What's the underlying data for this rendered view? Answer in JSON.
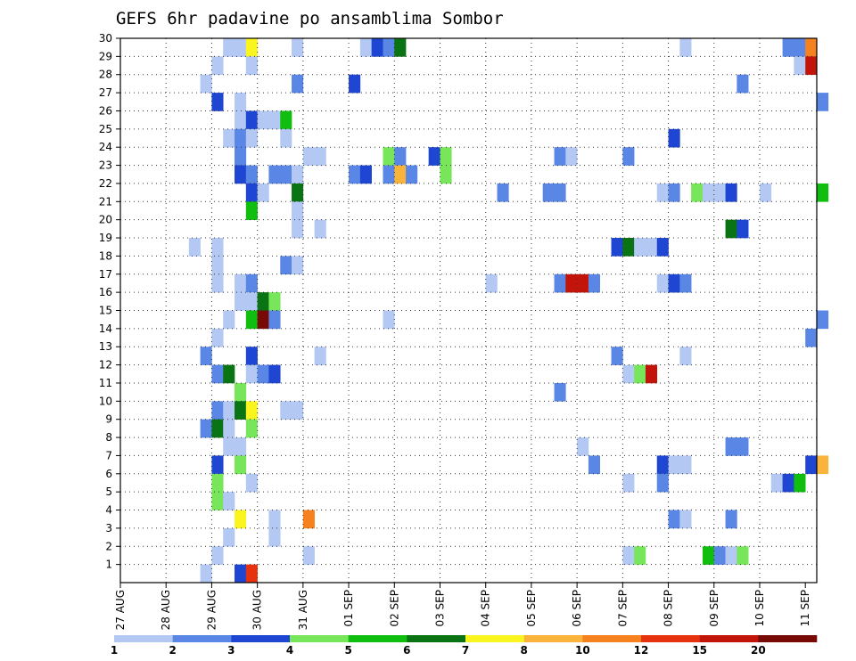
{
  "chart_data": {
    "type": "heatmap",
    "title": "GEFS 6hr padavine po ansamblima Sombor",
    "xlabel": "",
    "ylabel": "",
    "x_tick_labels": [
      "27 AUG",
      "28 AUG",
      "29 AUG",
      "30 AUG",
      "31 AUG",
      "01 SEP",
      "02 SEP",
      "03 SEP",
      "04 SEP",
      "05 SEP",
      "06 SEP",
      "07 SEP",
      "08 SEP",
      "09 SEP",
      "10 SEP",
      "11 SEP"
    ],
    "x_unit": "6-hour step (4 per day)",
    "xlim_steps": [
      0,
      61
    ],
    "y_tick_labels": [
      "1",
      "2",
      "3",
      "4",
      "5",
      "6",
      "7",
      "8",
      "9",
      "10",
      "11",
      "12",
      "13",
      "14",
      "15",
      "16",
      "17",
      "18",
      "19",
      "20",
      "21",
      "22",
      "23",
      "24",
      "25",
      "26",
      "27",
      "28",
      "29",
      "30"
    ],
    "ylim": [
      0,
      30
    ],
    "grid": true,
    "legend_position": "bottom",
    "levels": [
      "1",
      "2",
      "3",
      "4",
      "5",
      "6",
      "7",
      "8",
      "10",
      "12",
      "15",
      "20"
    ],
    "level_colors": [
      "#b4c8f4",
      "#5a87e6",
      "#1e46d2",
      "#78e65a",
      "#10be10",
      "#0a7314",
      "#faf51e",
      "#fab43c",
      "#f5821e",
      "#e6320f",
      "#c3140a",
      "#780a05"
    ],
    "cells": [
      [
        30,
        10,
        2
      ],
      [
        30,
        15,
        1
      ],
      [
        30,
        21,
        1
      ],
      [
        30,
        22,
        3
      ],
      [
        30,
        23,
        2
      ],
      [
        30,
        24,
        6
      ],
      [
        30,
        58,
        2
      ],
      [
        30,
        59,
        2
      ],
      [
        30,
        60,
        9
      ],
      [
        29,
        9,
        1
      ],
      [
        29,
        10,
        1
      ],
      [
        29,
        11,
        7
      ],
      [
        29,
        49,
        1
      ],
      [
        28,
        8,
        1
      ],
      [
        28,
        11,
        1
      ],
      [
        28,
        59,
        1
      ],
      [
        28,
        60,
        11
      ],
      [
        27,
        7,
        1
      ],
      [
        27,
        15,
        2
      ],
      [
        27,
        20,
        3
      ],
      [
        27,
        54,
        2
      ],
      [
        26,
        8,
        3
      ],
      [
        26,
        10,
        1
      ],
      [
        26,
        61,
        2
      ],
      [
        25,
        10,
        1
      ],
      [
        25,
        11,
        3
      ],
      [
        25,
        12,
        1
      ],
      [
        25,
        13,
        1
      ],
      [
        25,
        14,
        5
      ],
      [
        24,
        9,
        1
      ],
      [
        24,
        10,
        2
      ],
      [
        24,
        11,
        1
      ],
      [
        24,
        14,
        1
      ],
      [
        24,
        48,
        3
      ],
      [
        23,
        10,
        2
      ],
      [
        23,
        16,
        1
      ],
      [
        23,
        17,
        1
      ],
      [
        23,
        23,
        4
      ],
      [
        23,
        24,
        2
      ],
      [
        23,
        27,
        3
      ],
      [
        23,
        28,
        4
      ],
      [
        23,
        38,
        2
      ],
      [
        23,
        39,
        1
      ],
      [
        23,
        44,
        2
      ],
      [
        22,
        10,
        3
      ],
      [
        22,
        11,
        2
      ],
      [
        22,
        13,
        2
      ],
      [
        22,
        14,
        2
      ],
      [
        22,
        15,
        1
      ],
      [
        22,
        20,
        2
      ],
      [
        22,
        21,
        3
      ],
      [
        22,
        23,
        2
      ],
      [
        22,
        24,
        8
      ],
      [
        22,
        25,
        2
      ],
      [
        22,
        28,
        4
      ],
      [
        21,
        11,
        3
      ],
      [
        21,
        12,
        1
      ],
      [
        21,
        15,
        6
      ],
      [
        21,
        33,
        2
      ],
      [
        21,
        37,
        2
      ],
      [
        21,
        38,
        2
      ],
      [
        21,
        47,
        1
      ],
      [
        21,
        48,
        2
      ],
      [
        21,
        50,
        4
      ],
      [
        21,
        51,
        1
      ],
      [
        21,
        52,
        1
      ],
      [
        21,
        53,
        3
      ],
      [
        21,
        56,
        1
      ],
      [
        21,
        61,
        5
      ],
      [
        20,
        11,
        5
      ],
      [
        20,
        15,
        1
      ],
      [
        19,
        15,
        1
      ],
      [
        19,
        17,
        1
      ],
      [
        19,
        53,
        6
      ],
      [
        19,
        54,
        3
      ],
      [
        18,
        6,
        1
      ],
      [
        18,
        8,
        1
      ],
      [
        18,
        43,
        3
      ],
      [
        18,
        44,
        6
      ],
      [
        18,
        45,
        1
      ],
      [
        18,
        46,
        1
      ],
      [
        18,
        47,
        3
      ],
      [
        17,
        8,
        1
      ],
      [
        17,
        14,
        2
      ],
      [
        17,
        15,
        1
      ],
      [
        16,
        8,
        1
      ],
      [
        16,
        10,
        1
      ],
      [
        16,
        11,
        2
      ],
      [
        16,
        32,
        1
      ],
      [
        16,
        38,
        2
      ],
      [
        16,
        39,
        11
      ],
      [
        16,
        40,
        11
      ],
      [
        16,
        41,
        2
      ],
      [
        16,
        47,
        1
      ],
      [
        16,
        48,
        3
      ],
      [
        16,
        49,
        2
      ],
      [
        15,
        10,
        1
      ],
      [
        15,
        11,
        1
      ],
      [
        15,
        12,
        6
      ],
      [
        15,
        13,
        4
      ],
      [
        14,
        9,
        1
      ],
      [
        14,
        11,
        5
      ],
      [
        14,
        12,
        12
      ],
      [
        14,
        13,
        2
      ],
      [
        14,
        23,
        1
      ],
      [
        14,
        61,
        2
      ],
      [
        13,
        8,
        1
      ],
      [
        13,
        60,
        2
      ],
      [
        12,
        7,
        2
      ],
      [
        12,
        11,
        3
      ],
      [
        12,
        17,
        1
      ],
      [
        12,
        43,
        2
      ],
      [
        12,
        49,
        1
      ],
      [
        11,
        8,
        2
      ],
      [
        11,
        9,
        6
      ],
      [
        11,
        11,
        1
      ],
      [
        11,
        12,
        2
      ],
      [
        11,
        13,
        3
      ],
      [
        11,
        44,
        1
      ],
      [
        11,
        45,
        4
      ],
      [
        11,
        46,
        11
      ],
      [
        10,
        10,
        4
      ],
      [
        10,
        38,
        2
      ],
      [
        9,
        8,
        2
      ],
      [
        9,
        9,
        1
      ],
      [
        9,
        10,
        6
      ],
      [
        9,
        11,
        7
      ],
      [
        9,
        14,
        1
      ],
      [
        9,
        15,
        1
      ],
      [
        8,
        7,
        2
      ],
      [
        8,
        8,
        6
      ],
      [
        8,
        9,
        1
      ],
      [
        8,
        11,
        4
      ],
      [
        7,
        9,
        1
      ],
      [
        7,
        10,
        1
      ],
      [
        7,
        40,
        1
      ],
      [
        7,
        53,
        2
      ],
      [
        7,
        54,
        2
      ],
      [
        6,
        8,
        3
      ],
      [
        6,
        10,
        4
      ],
      [
        6,
        41,
        2
      ],
      [
        6,
        47,
        3
      ],
      [
        6,
        48,
        1
      ],
      [
        6,
        49,
        1
      ],
      [
        6,
        60,
        3
      ],
      [
        6,
        61,
        8
      ],
      [
        5,
        8,
        4
      ],
      [
        5,
        11,
        1
      ],
      [
        5,
        44,
        1
      ],
      [
        5,
        47,
        2
      ],
      [
        5,
        57,
        1
      ],
      [
        5,
        58,
        3
      ],
      [
        5,
        59,
        5
      ],
      [
        4,
        8,
        4
      ],
      [
        4,
        9,
        1
      ],
      [
        3,
        10,
        7
      ],
      [
        3,
        13,
        1
      ],
      [
        3,
        16,
        9
      ],
      [
        3,
        48,
        2
      ],
      [
        3,
        49,
        1
      ],
      [
        3,
        53,
        2
      ],
      [
        2,
        9,
        1
      ],
      [
        2,
        13,
        1
      ],
      [
        1,
        8,
        1
      ],
      [
        1,
        16,
        1
      ],
      [
        1,
        44,
        1
      ],
      [
        1,
        45,
        4
      ],
      [
        1,
        51,
        5
      ],
      [
        1,
        52,
        2
      ],
      [
        1,
        53,
        1
      ],
      [
        1,
        54,
        4
      ],
      [
        0,
        7,
        1
      ],
      [
        0,
        10,
        3
      ],
      [
        0,
        11,
        10
      ]
    ]
  }
}
